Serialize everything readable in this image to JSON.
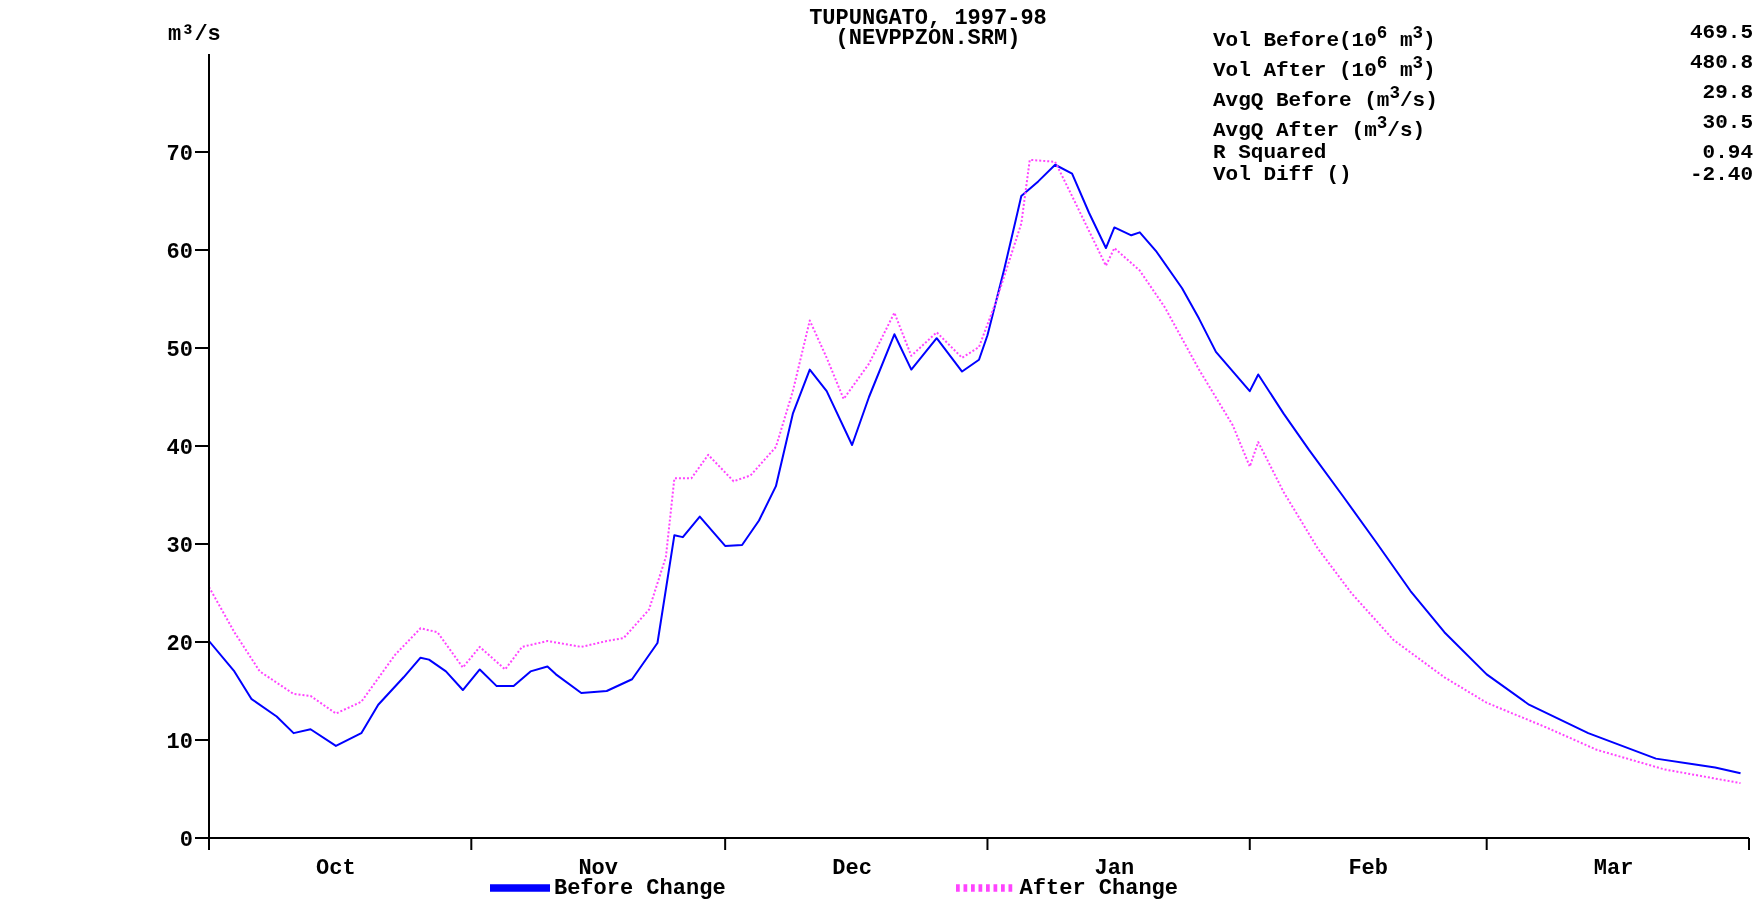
{
  "chart_data": {
    "type": "line",
    "title": "TUPUNGATO, 1997-98",
    "subtitle": "(NEVPPZON.SRM)",
    "ylabel": "m³/s",
    "annotations": [
      "Vol Before(10$^{6}$ m$^{3}$)",
      "469.5",
      "Vol After (10$^{6}$ m$^{3}$)",
      "480.8",
      "AvgQ Before (m$^{3}$/s)",
      "29.8",
      "AvgQ After  (m$^{3}$/s)",
      "30.5",
      "R Squared",
      "0.94",
      "Vol Diff ()",
      "-2.40"
    ],
    "series": [
      {
        "name": "Before Change",
        "color": "#0000ff",
        "line_style": "solid",
        "x": [
          "1997-10-01",
          "1997-10-04",
          "1997-10-06",
          "1997-10-09",
          "1997-10-11",
          "1997-10-13",
          "1997-10-16",
          "1997-10-19",
          "1997-10-21",
          "1997-10-24",
          "1997-10-26",
          "1997-10-27",
          "1997-10-29",
          "1997-10-31",
          "1997-11-02",
          "1997-11-04",
          "1997-11-06",
          "1997-11-08",
          "1997-11-10",
          "1997-11-11",
          "1997-11-14",
          "1997-11-17",
          "1997-11-20",
          "1997-11-23",
          "1997-11-25",
          "1997-11-26",
          "1997-11-28",
          "1997-12-01",
          "1997-12-03",
          "1997-12-05",
          "1997-12-07",
          "1997-12-09",
          "1997-12-11",
          "1997-12-13",
          "1997-12-16",
          "1997-12-18",
          "1997-12-21",
          "1997-12-23",
          "1997-12-26",
          "1997-12-29",
          "1997-12-31",
          "1998-01-01",
          "1998-01-03",
          "1998-01-05",
          "1998-01-07",
          "1998-01-09",
          "1998-01-11",
          "1998-01-13",
          "1998-01-15",
          "1998-01-16",
          "1998-01-18",
          "1998-01-19",
          "1998-01-21",
          "1998-01-24",
          "1998-01-26",
          "1998-01-28",
          "1998-02-01",
          "1998-02-02",
          "1998-02-05",
          "1998-02-08",
          "1998-02-12",
          "1998-02-16",
          "1998-02-20",
          "1998-02-24",
          "1998-03-01",
          "1998-03-06",
          "1998-03-13",
          "1998-03-21",
          "1998-03-28",
          "1998-03-31"
        ],
        "values": [
          20.1,
          17.0,
          14.2,
          12.4,
          10.7,
          11.1,
          9.4,
          10.7,
          13.6,
          16.4,
          18.4,
          18.2,
          17.0,
          15.1,
          17.2,
          15.5,
          15.5,
          17.0,
          17.5,
          16.7,
          14.8,
          15.0,
          16.2,
          19.9,
          30.9,
          30.7,
          32.8,
          29.8,
          29.9,
          32.4,
          35.9,
          43.3,
          47.8,
          45.6,
          40.1,
          45.0,
          51.4,
          47.8,
          51.0,
          47.6,
          48.8,
          51.3,
          58.1,
          65.5,
          67.0,
          68.7,
          67.8,
          63.8,
          60.2,
          62.3,
          61.5,
          61.8,
          59.8,
          56.1,
          53.0,
          49.6,
          45.6,
          47.3,
          43.3,
          39.6,
          34.9,
          30.1,
          25.2,
          21.0,
          16.7,
          13.6,
          10.7,
          8.1,
          7.2,
          6.6
        ]
      },
      {
        "name": "After Change",
        "color": "#ff44ff",
        "line_style": "dotted",
        "x": [
          "1997-10-01",
          "1997-10-04",
          "1997-10-07",
          "1997-10-11",
          "1997-10-13",
          "1997-10-16",
          "1997-10-19",
          "1997-10-23",
          "1997-10-26",
          "1997-10-28",
          "1997-10-31",
          "1997-11-02",
          "1997-11-05",
          "1997-11-07",
          "1997-11-10",
          "1997-11-14",
          "1997-11-17",
          "1997-11-19",
          "1997-11-22",
          "1997-11-24",
          "1997-11-25",
          "1997-11-27",
          "1997-11-29",
          "1997-12-02",
          "1997-12-04",
          "1997-12-07",
          "1997-12-09",
          "1997-12-11",
          "1997-12-13",
          "1997-12-15",
          "1997-12-18",
          "1997-12-21",
          "1997-12-23",
          "1997-12-26",
          "1997-12-29",
          "1997-12-31",
          "1998-01-02",
          "1998-01-05",
          "1998-01-06",
          "1998-01-09",
          "1998-01-11",
          "1998-01-15",
          "1998-01-16",
          "1998-01-19",
          "1998-01-22",
          "1998-01-26",
          "1998-01-30",
          "1998-02-01",
          "1998-02-02",
          "1998-02-05",
          "1998-02-09",
          "1998-02-13",
          "1998-02-18",
          "1998-02-24",
          "1998-03-01",
          "1998-03-08",
          "1998-03-14",
          "1998-03-22",
          "1998-03-31"
        ],
        "values": [
          25.6,
          21.0,
          17.0,
          14.7,
          14.5,
          12.7,
          13.9,
          18.7,
          21.4,
          21.0,
          17.4,
          19.5,
          17.2,
          19.5,
          20.1,
          19.5,
          20.1,
          20.4,
          23.3,
          28.7,
          36.7,
          36.7,
          39.1,
          36.4,
          37.0,
          39.9,
          45.6,
          52.8,
          49.0,
          44.8,
          48.4,
          53.6,
          49.2,
          51.6,
          49.0,
          50.1,
          54.7,
          62.7,
          69.2,
          69.0,
          65.5,
          58.4,
          60.2,
          57.9,
          54.1,
          47.8,
          42.1,
          37.9,
          40.4,
          35.3,
          29.6,
          25.0,
          20.2,
          16.4,
          13.8,
          11.3,
          9.0,
          7.0,
          5.6
        ]
      }
    ],
    "xlim": [
      "1997-10-01",
      "1998-04-01"
    ],
    "xticks": [
      {
        "value": "1997-10-01",
        "label": null
      },
      {
        "value": "1997-10-16",
        "label": "Oct"
      },
      {
        "value": "1997-11-01",
        "label": null
      },
      {
        "value": "1997-11-16",
        "label": "Nov"
      },
      {
        "value": "1997-12-01",
        "label": null
      },
      {
        "value": "1997-12-16",
        "label": "Dec"
      },
      {
        "value": "1998-01-01",
        "label": null
      },
      {
        "value": "1998-01-16",
        "label": "Jan"
      },
      {
        "value": "1998-02-01",
        "label": null
      },
      {
        "value": "1998-02-15",
        "label": "Feb"
      },
      {
        "value": "1998-03-01",
        "label": null
      },
      {
        "value": "1998-03-16",
        "label": "Mar"
      },
      {
        "value": "1998-04-01",
        "label": null
      }
    ],
    "ylim": [
      0,
      80
    ],
    "yticks": [
      0,
      10,
      20,
      30,
      40,
      50,
      60,
      70
    ],
    "grid": false,
    "legend": "bottom",
    "marker": "none"
  }
}
